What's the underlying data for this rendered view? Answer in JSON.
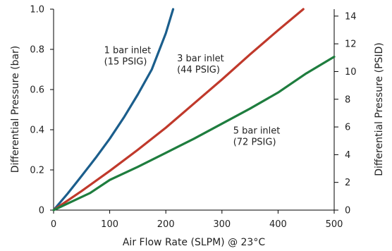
{
  "chart_data": {
    "type": "line",
    "xlabel": "Air Flow Rate (SLPM) @ 23°C",
    "ylabel": "Differential Pressure (bar)",
    "y2label": "Differential Pressure (PSID)",
    "xlim": [
      0,
      500
    ],
    "ylim": [
      0,
      1.0
    ],
    "y2lim": [
      0,
      14.5
    ],
    "x_ticks": [
      "0",
      "100",
      "200",
      "300",
      "400",
      "500"
    ],
    "y_ticks": [
      "0",
      "0.2",
      "0.4",
      "0.6",
      "0.8",
      "1.0"
    ],
    "y2_ticks": [
      "0",
      "2",
      "4",
      "6",
      "8",
      "10",
      "12",
      "14"
    ],
    "grid": false,
    "series": [
      {
        "color": "#1b5e8c",
        "x": [
          0,
          25,
          50,
          75,
          100,
          125,
          150,
          175,
          200,
          213
        ],
        "y": [
          0,
          0.082,
          0.17,
          0.26,
          0.355,
          0.46,
          0.575,
          0.7,
          0.88,
          1.0
        ]
      },
      {
        "color": "#c0392b",
        "x": [
          0,
          50,
          100,
          150,
          200,
          250,
          300,
          350,
          400,
          445
        ],
        "y": [
          0,
          0.095,
          0.195,
          0.3,
          0.41,
          0.53,
          0.65,
          0.775,
          0.895,
          1.0
        ]
      },
      {
        "color": "#1e7d3e",
        "x": [
          0,
          65,
          100,
          150,
          200,
          250,
          300,
          350,
          400,
          450,
          500
        ],
        "y": [
          0,
          0.085,
          0.15,
          0.215,
          0.285,
          0.355,
          0.43,
          0.505,
          0.585,
          0.68,
          0.763
        ]
      }
    ],
    "annotations": [
      {
        "lines": [
          "1 bar inlet",
          "(15 PSIG)"
        ],
        "x": 90,
        "y": 0.78
      },
      {
        "lines": [
          "3 bar inlet",
          "(44 PSIG)"
        ],
        "x": 220,
        "y": 0.74
      },
      {
        "lines": [
          "5 bar inlet",
          "(72 PSIG)"
        ],
        "x": 320,
        "y": 0.38
      }
    ]
  }
}
